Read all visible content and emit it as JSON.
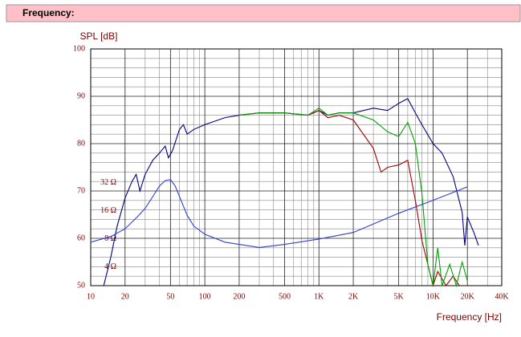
{
  "header": {
    "title": "Frequency:"
  },
  "chart_data": {
    "type": "line",
    "ylabel": "SPL [dB]",
    "xlabel": "Frequency [Hz]",
    "xlog": true,
    "xlim": [
      10,
      40000
    ],
    "xticks": [
      10,
      20,
      50,
      100,
      200,
      500,
      {
        "value": 1000,
        "label": "1K"
      },
      {
        "value": 2000,
        "label": "2K"
      },
      {
        "value": 5000,
        "label": "5K"
      },
      {
        "value": 10000,
        "label": "10K"
      },
      {
        "value": 20000,
        "label": "20K"
      },
      {
        "value": 40000,
        "label": "40K"
      }
    ],
    "xminorticks": [
      30,
      40,
      60,
      70,
      80,
      90,
      300,
      400,
      600,
      700,
      800,
      900,
      3000,
      4000,
      6000,
      7000,
      8000,
      9000,
      30000
    ],
    "ylim": [
      50,
      100
    ],
    "yticks": [
      50,
      60,
      70,
      80,
      90,
      100
    ],
    "yminorticks": [
      52,
      54,
      56,
      58,
      62,
      64,
      66,
      68,
      72,
      74,
      76,
      78,
      82,
      84,
      86,
      88,
      92,
      94,
      96,
      98
    ],
    "y2log": true,
    "y2lim": [
      2.53,
      873
    ],
    "y2ticks": [
      {
        "value": 4,
        "label": "4 Ω"
      },
      {
        "value": 8,
        "label": "8 Ω"
      },
      {
        "value": 16,
        "label": "16 Ω"
      },
      {
        "value": 32,
        "label": "32 Ω"
      }
    ],
    "grid": true,
    "series": [
      {
        "color": "#000080",
        "x": [
          13,
          15,
          17,
          20,
          23,
          25,
          27,
          30,
          35,
          40,
          45,
          48,
          52,
          60,
          65,
          70,
          80,
          100,
          150,
          200,
          300,
          500,
          800,
          1000,
          1200,
          1500,
          2000,
          3000,
          4000,
          5000,
          6000,
          7000,
          8000,
          10000,
          12000,
          15000,
          18000,
          19000,
          20000,
          23000,
          25000
        ],
        "values": [
          50,
          56,
          62.5,
          68.5,
          72,
          73.5,
          70,
          73.5,
          76.5,
          78,
          79.5,
          77,
          78.5,
          83,
          84,
          82,
          83,
          84,
          85.5,
          86,
          86.5,
          86.5,
          86,
          87,
          86,
          86.5,
          86.5,
          87.5,
          87,
          88.5,
          89.5,
          86.5,
          84,
          80,
          78,
          73,
          65.5,
          58.5,
          64.5,
          61,
          58.5
        ]
      },
      {
        "color": "#a00000",
        "x": [
          200,
          300,
          500,
          800,
          1000,
          1200,
          1500,
          2000,
          3000,
          3500,
          4000,
          5000,
          6000,
          7000,
          8000,
          9000,
          10000,
          11000,
          13000,
          15000,
          17000
        ],
        "values": [
          86,
          86.5,
          86.5,
          86,
          87,
          85.5,
          86,
          85,
          79,
          74,
          75,
          75.5,
          76.5,
          68,
          59.5,
          54.5,
          50,
          53,
          50,
          52,
          50
        ]
      },
      {
        "color": "#00a000",
        "x": [
          200,
          300,
          500,
          800,
          1000,
          1200,
          1500,
          2000,
          3000,
          4000,
          5000,
          6000,
          7000,
          8000,
          9000,
          10000,
          11000,
          12000,
          14000,
          16000,
          18000,
          20000
        ],
        "values": [
          86,
          86.5,
          86.5,
          86,
          87.5,
          86,
          86.5,
          86.5,
          85,
          82.5,
          81.5,
          84.5,
          80,
          69.5,
          54.5,
          50,
          58,
          50,
          54.5,
          50,
          55,
          51
        ]
      },
      {
        "color": "#3040d0",
        "axis": "y2",
        "x": [
          10,
          15,
          20,
          25,
          30,
          35,
          40,
          45,
          50,
          55,
          60,
          70,
          80,
          100,
          150,
          200,
          300,
          500,
          1000,
          2000,
          5000,
          10000,
          20000
        ],
        "values": [
          7.4,
          8.5,
          10.3,
          13.4,
          17,
          22.8,
          29.6,
          33.9,
          34.7,
          29.6,
          22.8,
          14.4,
          11,
          9,
          7.4,
          7,
          6.5,
          7,
          8,
          9.4,
          15.1,
          20.8,
          29
        ]
      }
    ]
  }
}
